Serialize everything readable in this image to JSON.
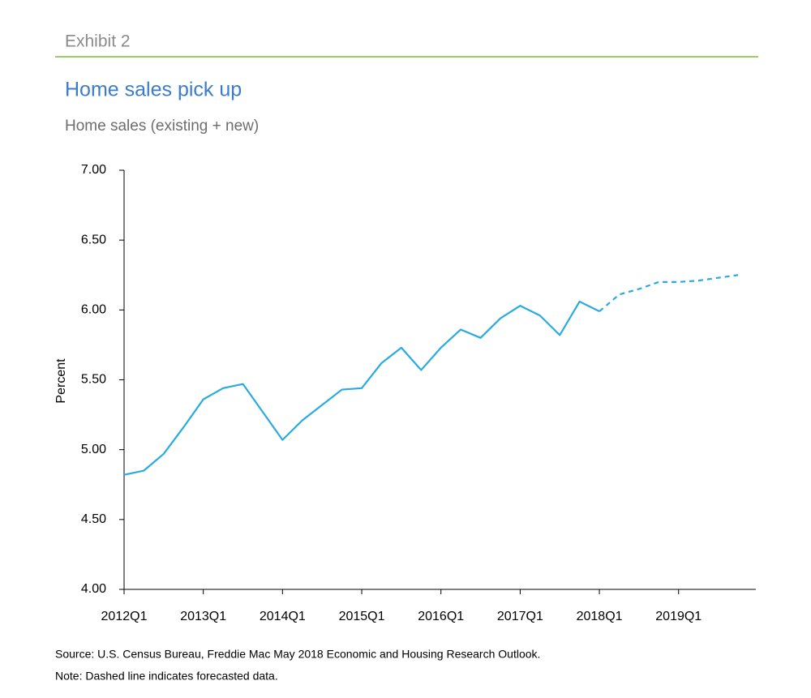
{
  "chart_data": {
    "type": "line",
    "exhibit": "Exhibit 2",
    "title": "Home sales pick up",
    "subtitle": "Home sales (existing + new)",
    "ylabel": "Percent",
    "source": "Source: U.S. Census Bureau, Freddie Mac May 2018 Economic and Housing Research Outlook.",
    "note": "Note: Dashed line indicates forecasted data.",
    "categories": [
      "2012Q1",
      null,
      null,
      null,
      "2013Q1",
      null,
      null,
      null,
      "2014Q1",
      null,
      null,
      null,
      "2015Q1",
      null,
      null,
      null,
      "2016Q1",
      null,
      null,
      null,
      "2017Q1",
      null,
      null,
      null,
      "2018Q1",
      null,
      null,
      null,
      "2019Q1",
      null,
      null,
      null
    ],
    "series": [
      {
        "color": "#29abe2",
        "dashed": false,
        "values": [
          4.82,
          4.85,
          4.97,
          5.16,
          5.36,
          5.44,
          5.47,
          5.27,
          5.07,
          5.21,
          5.32,
          5.43,
          5.44,
          5.62,
          5.73,
          5.57,
          5.73,
          5.86,
          5.8,
          5.94,
          6.03,
          5.96,
          5.82,
          6.06,
          5.99,
          null,
          null,
          null,
          null,
          null,
          null,
          null
        ]
      },
      {
        "color": "#29abe2",
        "dashed": true,
        "values": [
          null,
          null,
          null,
          null,
          null,
          null,
          null,
          null,
          null,
          null,
          null,
          null,
          null,
          null,
          null,
          null,
          null,
          null,
          null,
          null,
          null,
          null,
          null,
          null,
          5.99,
          6.11,
          6.15,
          6.2,
          6.2,
          6.21,
          6.23,
          6.25
        ]
      }
    ],
    "ylim": [
      4,
      7
    ],
    "yticks": [
      {
        "value": 4,
        "label": "4.00"
      },
      {
        "value": 4.5,
        "label": "4.50"
      },
      {
        "value": 5,
        "label": "5.00"
      },
      {
        "value": 5.5,
        "label": "5.50"
      },
      {
        "value": 6,
        "label": "6.00"
      },
      {
        "value": 6.5,
        "label": "6.50"
      },
      {
        "value": 7,
        "label": "7.00"
      }
    ],
    "grid": false
  }
}
